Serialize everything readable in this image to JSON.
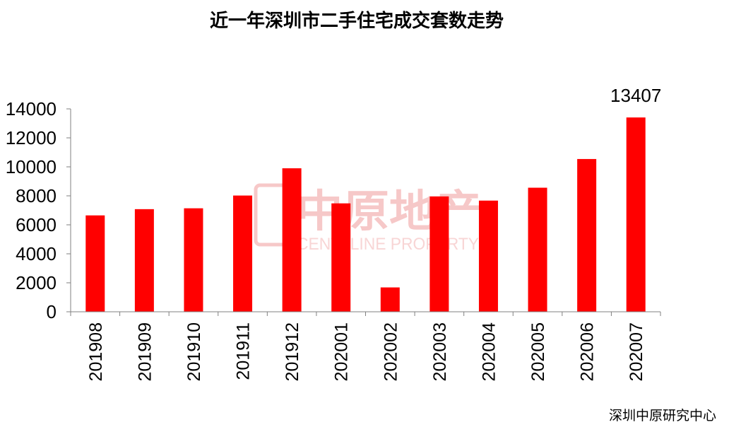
{
  "chart_data": {
    "type": "bar",
    "title": "近一年深圳市二手住宅成交套数走势",
    "categories": [
      "201908",
      "201909",
      "201910",
      "201911",
      "201912",
      "202001",
      "202002",
      "202003",
      "202004",
      "202005",
      "202006",
      "202007"
    ],
    "values": [
      6650,
      7080,
      7140,
      8020,
      9900,
      7480,
      1680,
      7960,
      7670,
      8560,
      10540,
      13407
    ],
    "data_labels": [
      {
        "index": 11,
        "text": "13407"
      }
    ],
    "ylim": [
      0,
      14000
    ],
    "yticks": [
      "0",
      "2000",
      "4000",
      "6000",
      "8000",
      "10000",
      "12000",
      "14000"
    ],
    "xlabel": "",
    "ylabel": "",
    "grid": false,
    "bar_color": "#ff0000",
    "source": "深圳中原研究中心"
  },
  "watermark": {
    "logo_text": "中原地产",
    "sub_text": "CENTALINE PROPERTY",
    "color": "#f4b6b6"
  }
}
